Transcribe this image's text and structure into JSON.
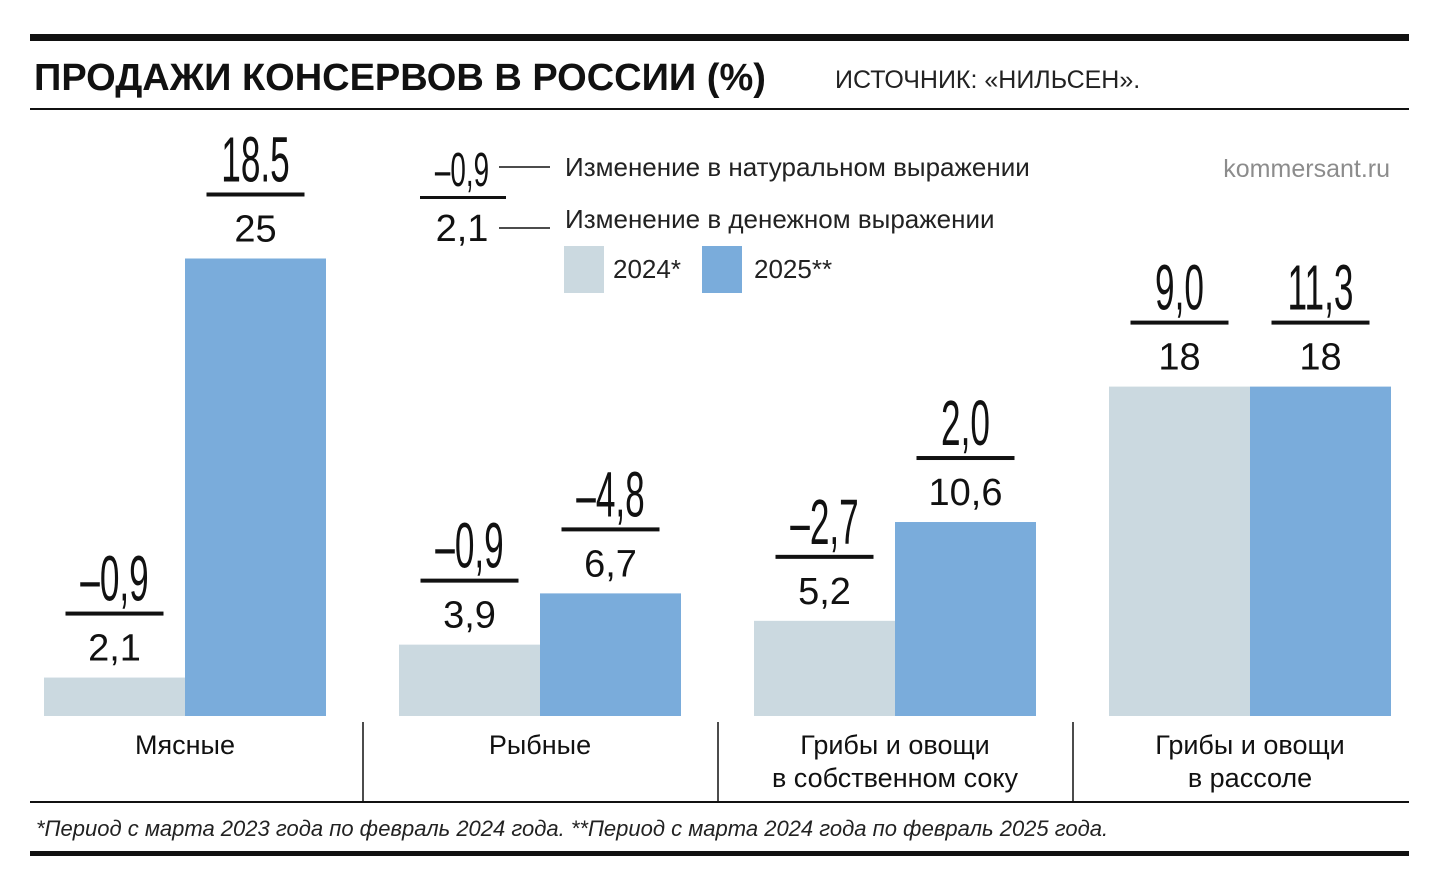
{
  "header": {
    "title": "ПРОДАЖИ КОНСЕРВОВ В РОССИИ (%)",
    "source": "ИСТОЧНИК: «НИЛЬСЕН».",
    "site": "kommersant.ru"
  },
  "legend": {
    "sample_natural": "–0,9",
    "sample_money": "2,1",
    "natural_label": "Изменение в натуральном выражении",
    "money_label": "Изменение в денежном выражении",
    "series": [
      {
        "name": "2024*",
        "color": "#cbd9e0"
      },
      {
        "name": "2025**",
        "color": "#7aacdb"
      }
    ]
  },
  "footnote": "*Период с марта 2023 года по февраль 2024 года. **Период с марта 2024 года по февраль 2025 года.",
  "chart_data": {
    "type": "bar",
    "title": "ПРОДАЖИ КОНСЕРВОВ В РОССИИ (%)",
    "categories": [
      "Мясные",
      "Рыбные",
      "Грибы и овощи\nв собственном соку",
      "Грибы и овощи\nв рассоле"
    ],
    "series": [
      {
        "name": "2024*",
        "color": "#cbd9e0",
        "values": [
          2.1,
          3.9,
          5.2,
          18
        ],
        "value_labels": [
          "2,1",
          "3,9",
          "5,2",
          "18"
        ],
        "natural_values": [
          -0.9,
          -0.9,
          -2.7,
          9.0
        ],
        "natural_labels": [
          "–0,9",
          "–0,9",
          "–2,7",
          "9,0"
        ]
      },
      {
        "name": "2025**",
        "color": "#7aacdb",
        "values": [
          25,
          6.7,
          10.6,
          18
        ],
        "value_labels": [
          "25",
          "6,7",
          "10,6",
          "18"
        ],
        "natural_values": [
          18.5,
          -4.8,
          2.0,
          11.3
        ],
        "natural_labels": [
          "18.5",
          "–4,8",
          "2,0",
          "11,3"
        ]
      }
    ],
    "value_meaning": "Изменение в денежном выражении",
    "natural_meaning": "Изменение в натуральном выражении",
    "ylim": [
      0,
      25
    ],
    "grid": false,
    "legend_position": "top"
  }
}
